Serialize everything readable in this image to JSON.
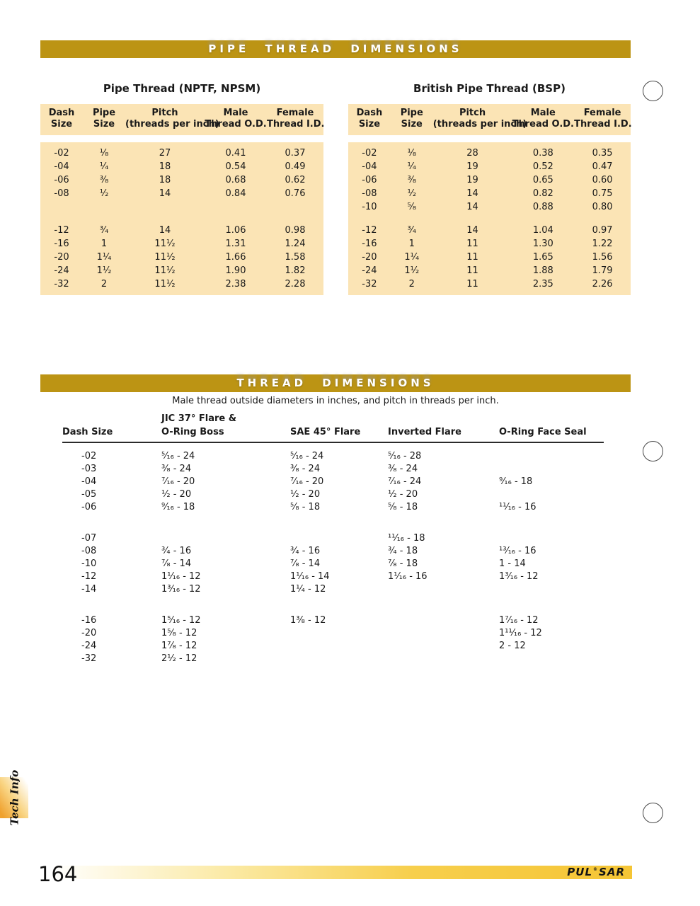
{
  "page": {
    "number": "164",
    "tab_label": "Tech Info",
    "logo": {
      "pre": "PUL",
      "reg": "®",
      "post": "SAR"
    }
  },
  "colors": {
    "gold_bar": "#BC9414",
    "table_background": "#FBE4B5",
    "footer_gold": "#F5C535"
  },
  "section_pipe": {
    "bar_title": "PIPE THREAD DIMENSIONS",
    "tables": [
      {
        "title": "Pipe Thread (NPTF, NPSM)",
        "headers": [
          {
            "l1": "Dash",
            "l2": "Size"
          },
          {
            "l1": "Pipe",
            "l2": "Size"
          },
          {
            "l1": "Pitch",
            "l2": "(threads per inch)"
          },
          {
            "l1": "Male",
            "l2": "Thread O.D."
          },
          {
            "l1": "Female",
            "l2": "Thread I.D."
          }
        ],
        "groups": [
          [
            [
              "-02",
              "¹⁄₈",
              "27",
              "0.41",
              "0.37"
            ],
            [
              "-04",
              "¹⁄₄",
              "18",
              "0.54",
              "0.49"
            ],
            [
              "-06",
              "³⁄₈",
              "18",
              "0.68",
              "0.62"
            ],
            [
              "-08",
              "¹⁄₂",
              "14",
              "0.84",
              "0.76"
            ]
          ],
          [
            [
              "-12",
              "³⁄₄",
              "14",
              "1.06",
              "0.98"
            ],
            [
              "-16",
              "1",
              "11¹⁄₂",
              "1.31",
              "1.24"
            ],
            [
              "-20",
              "1¹⁄₄",
              "11¹⁄₂",
              "1.66",
              "1.58"
            ],
            [
              "-24",
              "1¹⁄₂",
              "11¹⁄₂",
              "1.90",
              "1.82"
            ],
            [
              "-32",
              "2",
              "11¹⁄₂",
              "2.38",
              "2.28"
            ]
          ]
        ]
      },
      {
        "title": "British Pipe Thread (BSP)",
        "headers": [
          {
            "l1": "Dash",
            "l2": "Size"
          },
          {
            "l1": "Pipe",
            "l2": "Size"
          },
          {
            "l1": "Pitch",
            "l2": "(threads per inch)"
          },
          {
            "l1": "Male",
            "l2": "Thread O.D."
          },
          {
            "l1": "Female",
            "l2": "Thread I.D."
          }
        ],
        "groups": [
          [
            [
              "-02",
              "¹⁄₈",
              "28",
              "0.38",
              "0.35"
            ],
            [
              "-04",
              "¹⁄₄",
              "19",
              "0.52",
              "0.47"
            ],
            [
              "-06",
              "³⁄₈",
              "19",
              "0.65",
              "0.60"
            ],
            [
              "-08",
              "¹⁄₂",
              "14",
              "0.82",
              "0.75"
            ],
            [
              "-10",
              "⁵⁄₈",
              "14",
              "0.88",
              "0.80"
            ]
          ],
          [
            [
              "-12",
              "³⁄₄",
              "14",
              "1.04",
              "0.97"
            ],
            [
              "-16",
              "1",
              "11",
              "1.30",
              "1.22"
            ],
            [
              "-20",
              "1¹⁄₄",
              "11",
              "1.65",
              "1.56"
            ],
            [
              "-24",
              "1¹⁄₂",
              "11",
              "1.88",
              "1.79"
            ],
            [
              "-32",
              "2",
              "11",
              "2.35",
              "2.26"
            ]
          ]
        ]
      }
    ]
  },
  "section_thread": {
    "bar_title": "THREAD DIMENSIONS",
    "subtitle": "Male thread outside diameters in inches, and pitch in threads per inch.",
    "headers": {
      "dash": "Dash Size",
      "jic_l1": "JIC 37° Flare &",
      "jic_l2": "O-Ring Boss",
      "sae": "SAE 45° Flare",
      "inverted": "Inverted Flare",
      "oring": "O-Ring Face Seal"
    },
    "groups": [
      [
        [
          "-02",
          "⁵⁄₁₆ - 24",
          "⁵⁄₁₆ - 24",
          "⁵⁄₁₆ - 28",
          ""
        ],
        [
          "-03",
          "³⁄₈ - 24",
          "³⁄₈ - 24",
          "³⁄₈ - 24",
          ""
        ],
        [
          "-04",
          "⁷⁄₁₆ - 20",
          "⁷⁄₁₆ - 20",
          "⁷⁄₁₆ - 24",
          "⁹⁄₁₆ - 18"
        ],
        [
          "-05",
          "¹⁄₂ - 20",
          "¹⁄₂ - 20",
          "¹⁄₂ - 20",
          ""
        ],
        [
          "-06",
          "⁹⁄₁₆ - 18",
          "⁵⁄₈ - 18",
          "⁵⁄₈ - 18",
          "¹¹⁄₁₆ - 16"
        ]
      ],
      [
        [
          "-07",
          "",
          "",
          "¹¹⁄₁₆ - 18",
          ""
        ],
        [
          "-08",
          "³⁄₄ - 16",
          "³⁄₄ - 16",
          "³⁄₄ - 18",
          "¹³⁄₁₆ - 16"
        ],
        [
          "-10",
          "⁷⁄₈ - 14",
          "⁷⁄₈ - 14",
          "⁷⁄₈ - 18",
          "1 - 14"
        ],
        [
          "-12",
          "1¹⁄₁₆ - 12",
          "1¹⁄₁₆ - 14",
          "1¹⁄₁₆ - 16",
          "1³⁄₁₆ - 12"
        ],
        [
          "-14",
          "1³⁄₁₆ - 12",
          "1¹⁄₄ - 12",
          "",
          ""
        ]
      ],
      [
        [
          "-16",
          "1⁵⁄₁₆ - 12",
          "1³⁄₈ - 12",
          "",
          "1⁷⁄₁₆ - 12"
        ],
        [
          "-20",
          "1⁵⁄₈ - 12",
          "",
          "",
          "1¹¹⁄₁₆ - 12"
        ],
        [
          "-24",
          "1⁷⁄₈ - 12",
          "",
          "",
          "2 - 12"
        ],
        [
          "-32",
          "2¹⁄₂ - 12",
          "",
          "",
          ""
        ]
      ]
    ]
  }
}
